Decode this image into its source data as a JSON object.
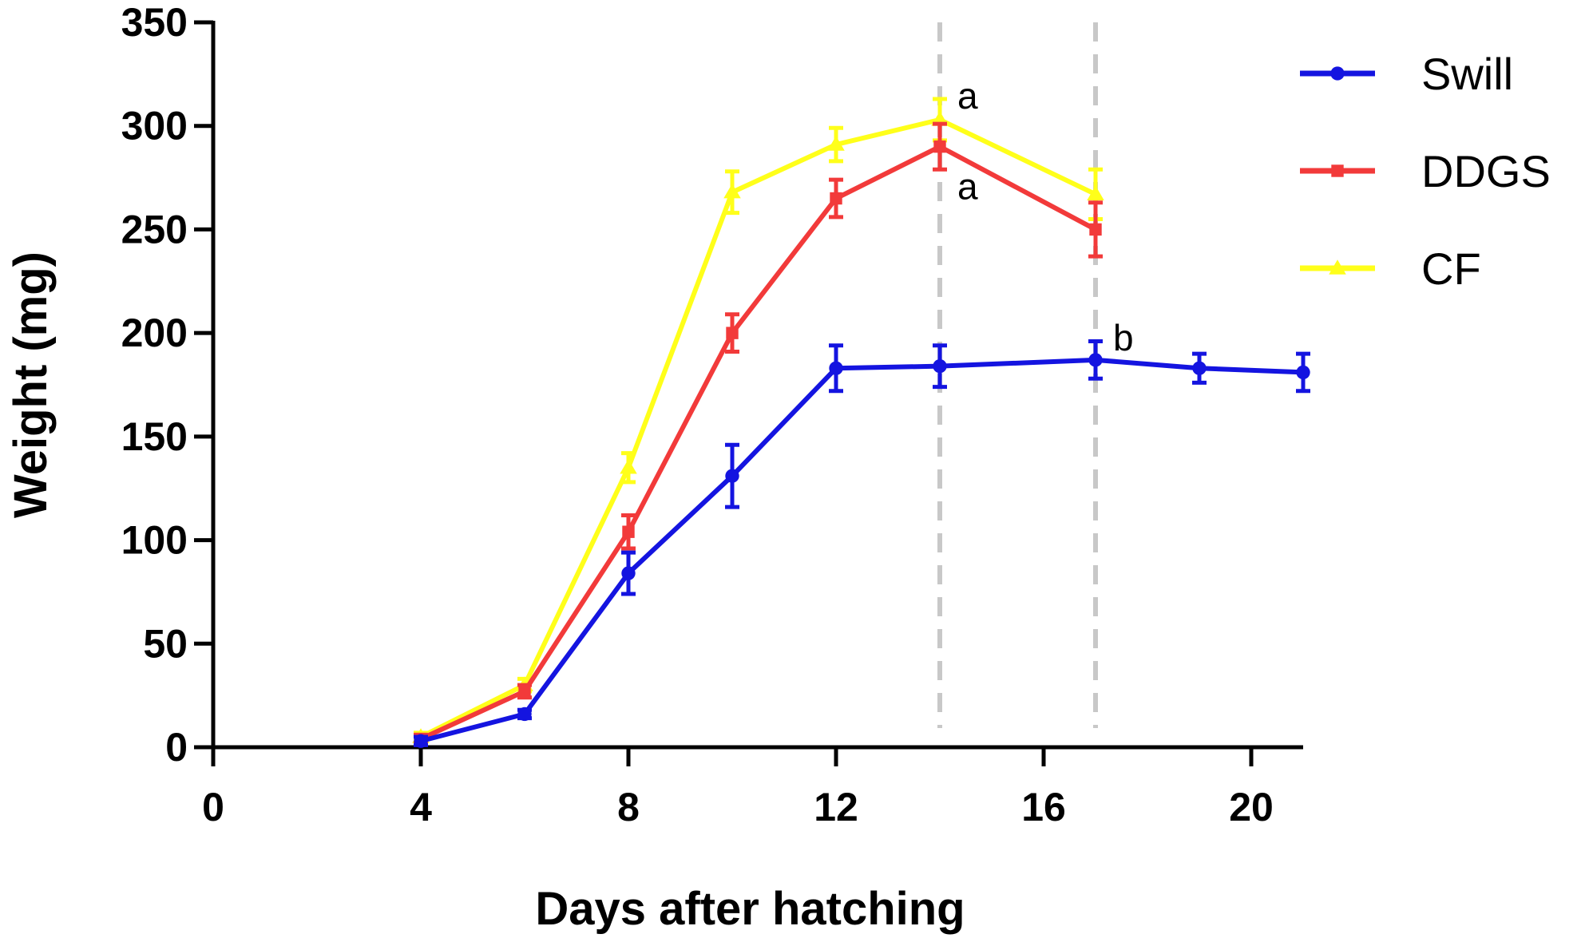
{
  "chart_data": {
    "type": "line",
    "title": "",
    "xlabel": "Days after hatching",
    "ylabel": "Weight (mg)",
    "xlim": [
      0,
      21
    ],
    "ylim": [
      0,
      350
    ],
    "xticks": [
      0,
      4,
      8,
      12,
      16,
      20
    ],
    "yticks": [
      0,
      50,
      100,
      150,
      200,
      250,
      300,
      350
    ],
    "grid": false,
    "legend_position": "top-right",
    "reference_lines_x": [
      14,
      17
    ],
    "series": [
      {
        "name": "Swill",
        "color": "#1414e0",
        "marker": "circle",
        "x": [
          4,
          6,
          8,
          10,
          12,
          14,
          17,
          19,
          21
        ],
        "y": [
          3,
          16,
          84,
          131,
          183,
          184,
          187,
          183,
          181
        ],
        "err": [
          2,
          2,
          10,
          15,
          11,
          10,
          9,
          7,
          9
        ]
      },
      {
        "name": "DDGS",
        "color": "#f23a3a",
        "marker": "square",
        "x": [
          4,
          6,
          8,
          10,
          12,
          14,
          17
        ],
        "y": [
          4,
          27,
          104,
          200,
          265,
          290,
          250
        ],
        "err": [
          2,
          3,
          8,
          9,
          9,
          11,
          13
        ]
      },
      {
        "name": "CF",
        "color": "#ffff1a",
        "marker": "triangle",
        "x": [
          4,
          6,
          8,
          10,
          12,
          14,
          17
        ],
        "y": [
          5,
          30,
          135,
          268,
          291,
          303,
          267
        ],
        "err": [
          2,
          3,
          7,
          10,
          8,
          10,
          12
        ]
      }
    ],
    "annotations": [
      {
        "text": "a",
        "x": 14,
        "y": 303
      },
      {
        "text": "a",
        "x": 14,
        "y": 290
      },
      {
        "text": "b",
        "x": 17,
        "y": 187
      }
    ]
  }
}
